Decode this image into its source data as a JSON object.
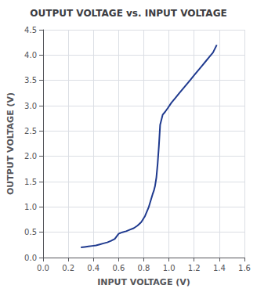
{
  "chart_data": {
    "type": "line",
    "title": "OUTPUT VOLTAGE vs. INPUT VOLTAGE",
    "xlabel": "INPUT VOLTAGE (V)",
    "ylabel": "OUTPUT VOLTAGE (V)",
    "x": [
      0.3,
      0.33,
      0.36,
      0.39,
      0.42,
      0.45,
      0.48,
      0.51,
      0.54,
      0.57,
      0.6,
      0.63,
      0.66,
      0.69,
      0.72,
      0.75,
      0.78,
      0.81,
      0.84,
      0.87,
      0.88,
      0.89,
      0.9,
      0.91,
      0.92,
      0.93,
      0.95,
      0.97,
      0.99,
      1.02,
      1.05,
      1.08,
      1.11,
      1.14,
      1.17,
      1.2,
      1.23,
      1.26,
      1.29,
      1.32,
      1.35,
      1.38
    ],
    "values": [
      0.2,
      0.21,
      0.22,
      0.23,
      0.24,
      0.26,
      0.28,
      0.3,
      0.33,
      0.37,
      0.47,
      0.5,
      0.52,
      0.55,
      0.58,
      0.63,
      0.7,
      0.82,
      1.0,
      1.25,
      1.32,
      1.42,
      1.58,
      1.85,
      2.2,
      2.62,
      2.82,
      2.88,
      2.95,
      3.06,
      3.15,
      3.24,
      3.33,
      3.42,
      3.51,
      3.6,
      3.69,
      3.78,
      3.87,
      3.96,
      4.05,
      4.2
    ],
    "color": "#1f3a8f",
    "xlim": [
      0.0,
      1.6
    ],
    "ylim": [
      0.0,
      4.5
    ],
    "xticks": [
      {
        "value": 0.0,
        "label": "0.0"
      },
      0.2,
      0.4,
      0.6,
      0.8,
      {
        "value": 1.0,
        "label": "1.0"
      },
      1.2,
      1.4,
      1.6
    ],
    "yticks": [
      {
        "value": 0.0,
        "label": "0.0"
      },
      0.5,
      {
        "value": 1.0,
        "label": "1.0"
      },
      1.5,
      {
        "value": 2.0,
        "label": "2.0"
      },
      2.5,
      {
        "value": 3.0,
        "label": "3.0"
      },
      3.5,
      {
        "value": 4.0,
        "label": "4.0"
      },
      4.5
    ],
    "grid": true
  }
}
